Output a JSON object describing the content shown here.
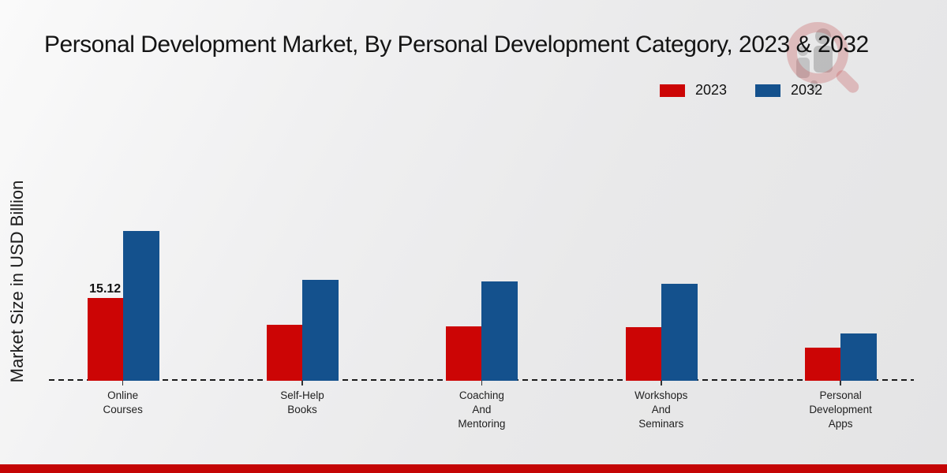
{
  "title": "Personal Development Market, By Personal Development Category, 2023 & 2032",
  "ylabel": "Market Size in USD Billion",
  "legend": {
    "items": [
      {
        "label": "2023",
        "color": "#CC0505"
      },
      {
        "label": "2032",
        "color": "#14518D"
      }
    ]
  },
  "footer": {
    "accent_color": "#C40505"
  },
  "watermark_name": "magnifier-people-logo",
  "chart_data": {
    "type": "bar",
    "title": "Personal Development Market, By Personal Development Category, 2023 & 2032",
    "xlabel": "",
    "ylabel": "Market Size in USD Billion",
    "categories": [
      "Online Courses",
      "Self-Help Books",
      "Coaching And Mentoring",
      "Workshops And Seminars",
      "Personal Development Apps"
    ],
    "category_label_lines": [
      [
        "Online",
        "Courses"
      ],
      [
        "Self-Help",
        "Books"
      ],
      [
        "Coaching",
        "And",
        "Mentoring"
      ],
      [
        "Workshops",
        "And",
        "Seminars"
      ],
      [
        "Personal",
        "Development",
        "Apps"
      ]
    ],
    "series": [
      {
        "name": "2023",
        "color": "#CC0505",
        "values": [
          15.12,
          10.2,
          9.9,
          9.8,
          6.0
        ]
      },
      {
        "name": "2032",
        "color": "#14518D",
        "values": [
          27.4,
          18.4,
          18.1,
          17.7,
          8.6
        ]
      }
    ],
    "value_labels": [
      {
        "series": "2023",
        "category": "Online Courses",
        "text": "15.12"
      }
    ],
    "ylim": [
      0,
      30
    ],
    "gridlines": false,
    "baseline_style": "dashed",
    "legend_position": "top-right"
  }
}
